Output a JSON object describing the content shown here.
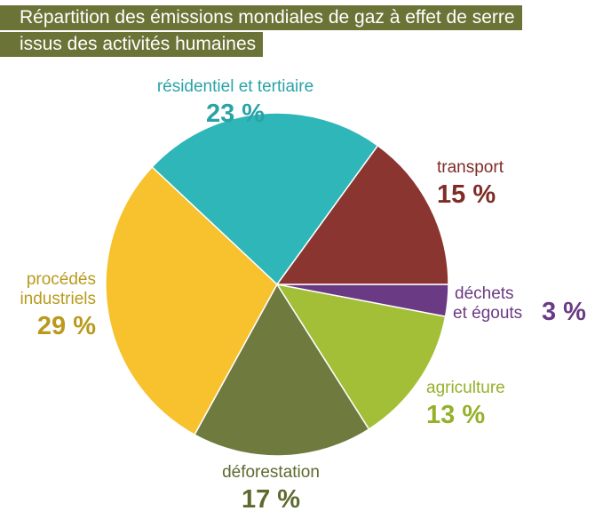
{
  "title": {
    "line1": "Répartition des émissions mondiales de gaz à effet de serre",
    "line2": "issus des activités humaines"
  },
  "colors": {
    "title_band": "#6b7436"
  },
  "chart_data": {
    "type": "pie",
    "title": "Répartition des émissions mondiales de gaz à effet de serre issus des activités humaines",
    "unit": "%",
    "start_angle_deg": 0,
    "direction": "clockwise",
    "slices": [
      {
        "label": "déchets et égouts",
        "label_lines": [
          "déchets",
          "et égouts"
        ],
        "value": 3,
        "value_label": "3 %",
        "color": "#6b3a84"
      },
      {
        "label": "agriculture",
        "label_lines": [
          "agriculture"
        ],
        "value": 13,
        "value_label": "13 %",
        "color": "#a3bf38"
      },
      {
        "label": "déforestation",
        "label_lines": [
          "déforestation"
        ],
        "value": 17,
        "value_label": "17 %",
        "color": "#6e7a3e"
      },
      {
        "label": "procédés industriels",
        "label_lines": [
          "procédés",
          "industriels"
        ],
        "value": 29,
        "value_label": "29 %",
        "color": "#f7c22e"
      },
      {
        "label": "résidentiel et tertiaire",
        "label_lines": [
          "résidentiel et tertiaire"
        ],
        "value": 23,
        "value_label": "23 %",
        "color": "#2eb6b9"
      },
      {
        "label": "transport",
        "label_lines": [
          "transport"
        ],
        "value": 15,
        "value_label": "15 %",
        "color": "#8a3530"
      }
    ],
    "label_text_colors": {
      "déchets et égouts": "#6b3a84",
      "agriculture": "#95b02a",
      "déforestation": "#5d6a2e",
      "procédés industriels": "#b99a1d",
      "résidentiel et tertiaire": "#2aa3a6",
      "transport": "#7f2c26"
    }
  }
}
